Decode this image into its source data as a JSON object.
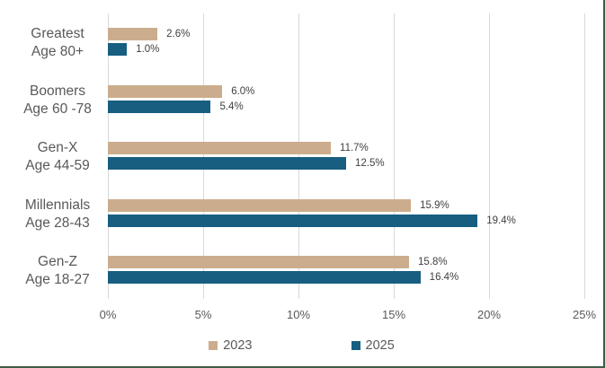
{
  "chart_data": {
    "type": "bar",
    "orientation": "horizontal",
    "title": "",
    "categories": [
      [
        "Greatest",
        "Age 80+"
      ],
      [
        "Boomers",
        "Age 60 -78"
      ],
      [
        "Gen-X",
        "Age 44-59"
      ],
      [
        "Millennials",
        "Age 28-43"
      ],
      [
        "Gen-Z",
        "Age 18-27"
      ]
    ],
    "series": [
      {
        "name": "2023",
        "color": "#CBAD8D",
        "values": [
          2.6,
          6.0,
          11.7,
          15.9,
          15.8
        ],
        "labels": [
          "2.6%",
          "6.0%",
          "11.7%",
          "15.9%",
          "15.8%"
        ]
      },
      {
        "name": "2025",
        "color": "#175E81",
        "values": [
          1.0,
          5.4,
          12.5,
          19.4,
          16.4
        ],
        "labels": [
          "1.0%",
          "5.4%",
          "12.5%",
          "19.4%",
          "16.4%"
        ]
      }
    ],
    "x_axis": {
      "tick_labels": [
        "0%",
        "5%",
        "10%",
        "15%",
        "20%",
        "25%"
      ],
      "tick_values": [
        0,
        5,
        10,
        15,
        20,
        25
      ],
      "min": 0,
      "max": 25
    },
    "grid": true,
    "legend_position": "bottom",
    "legend": [
      "2023",
      "2025"
    ]
  },
  "colors": {
    "frame_border": "#3E5C46",
    "gridline": "#D9D9D9",
    "category_text": "#595959",
    "axis_text": "#595959",
    "value_text": "#404040",
    "background": "#ffffff"
  }
}
